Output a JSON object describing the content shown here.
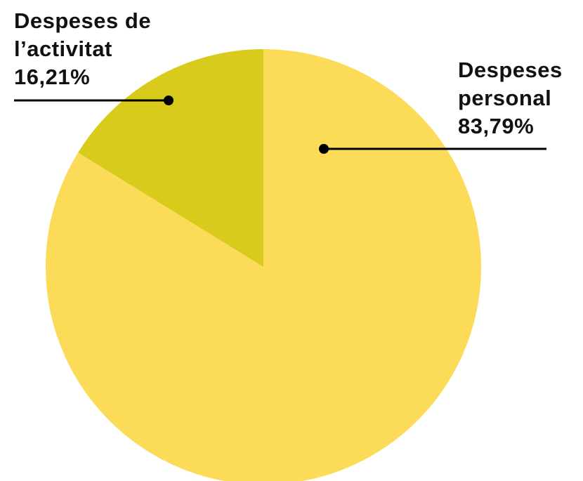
{
  "chart_data": {
    "type": "pie",
    "categories": [
      "Despeses personal",
      "Despeses de l’activitat"
    ],
    "values": [
      83.79,
      16.21
    ],
    "value_labels": [
      "83,79%",
      "16,21%"
    ],
    "colors": [
      "#fcdb58",
      "#d9cb1b"
    ]
  }
}
